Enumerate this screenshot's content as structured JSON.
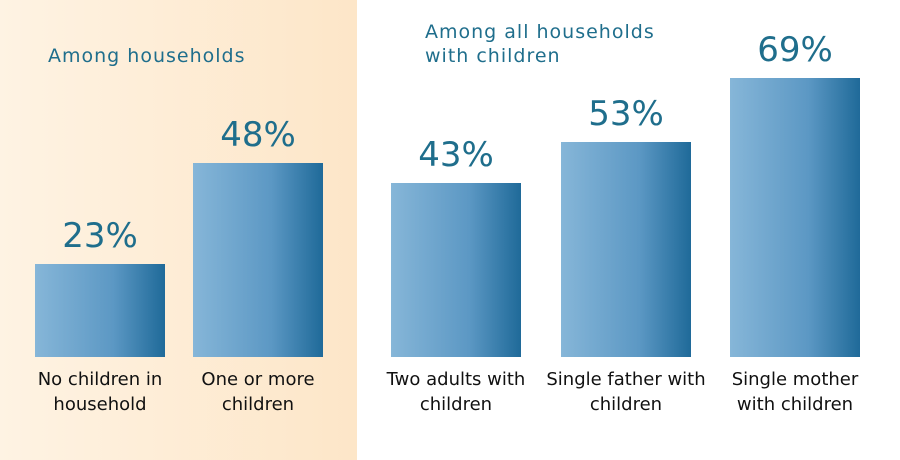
{
  "chart_data": [
    {
      "type": "bar",
      "title": "Among households",
      "categories": [
        "No children in household",
        "One or more children"
      ],
      "values": [
        23,
        48
      ],
      "value_labels": [
        "23%",
        "48%"
      ],
      "color": "#1f6a99"
    },
    {
      "type": "bar",
      "title": "Among all households with children",
      "categories": [
        "Two adults with children",
        "Single father with children",
        "Single mother with children"
      ],
      "values": [
        43,
        53,
        69
      ],
      "value_labels": [
        "43%",
        "53%",
        "69%"
      ],
      "color": "#1f6a99"
    }
  ]
}
